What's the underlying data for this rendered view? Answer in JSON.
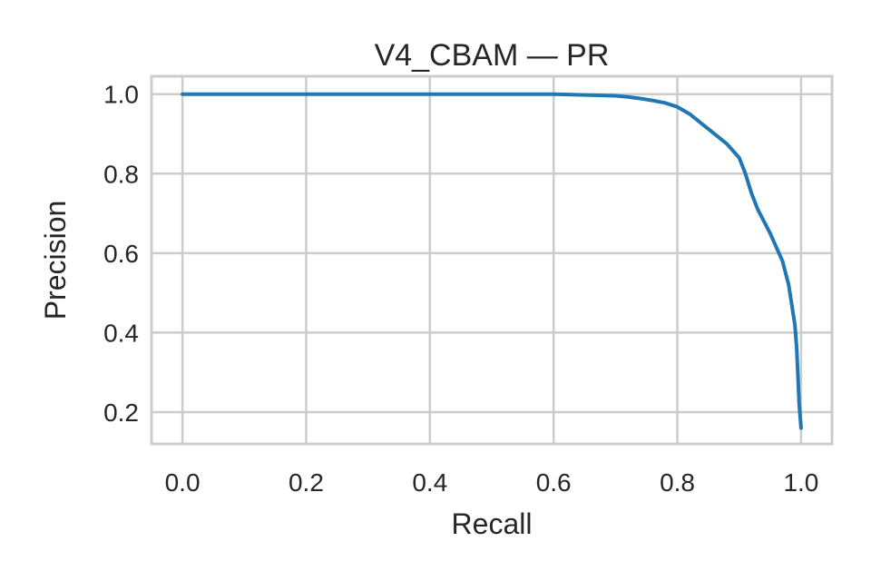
{
  "chart_data": {
    "type": "line",
    "title": "V4_CBAM — PR",
    "xlabel": "Recall",
    "ylabel": "Precision",
    "xlim": [
      -0.05,
      1.05
    ],
    "ylim": [
      0.12,
      1.045
    ],
    "xticks": [
      0.0,
      0.2,
      0.4,
      0.6,
      0.8,
      1.0
    ],
    "xtick_labels": [
      "0.0",
      "0.2",
      "0.4",
      "0.6",
      "0.8",
      "1.0"
    ],
    "yticks": [
      0.2,
      0.4,
      0.6,
      0.8,
      1.0
    ],
    "ytick_labels": [
      "0.2",
      "0.4",
      "0.6",
      "0.8",
      "1.0"
    ],
    "grid": true,
    "legend": "none",
    "series": [
      {
        "color": "#1f77b4",
        "x": [
          0.0,
          0.1,
          0.2,
          0.3,
          0.4,
          0.5,
          0.6,
          0.65,
          0.7,
          0.72,
          0.74,
          0.76,
          0.78,
          0.8,
          0.82,
          0.84,
          0.86,
          0.88,
          0.9,
          0.91,
          0.92,
          0.93,
          0.94,
          0.95,
          0.96,
          0.97,
          0.98,
          0.99,
          0.993,
          0.995,
          0.997,
          1.0
        ],
        "y": [
          1.0,
          1.0,
          1.0,
          1.0,
          1.0,
          1.0,
          1.0,
          0.998,
          0.996,
          0.993,
          0.989,
          0.984,
          0.978,
          0.968,
          0.95,
          0.925,
          0.9,
          0.875,
          0.84,
          0.8,
          0.75,
          0.71,
          0.68,
          0.65,
          0.615,
          0.58,
          0.52,
          0.42,
          0.36,
          0.29,
          0.22,
          0.16
        ]
      }
    ]
  }
}
